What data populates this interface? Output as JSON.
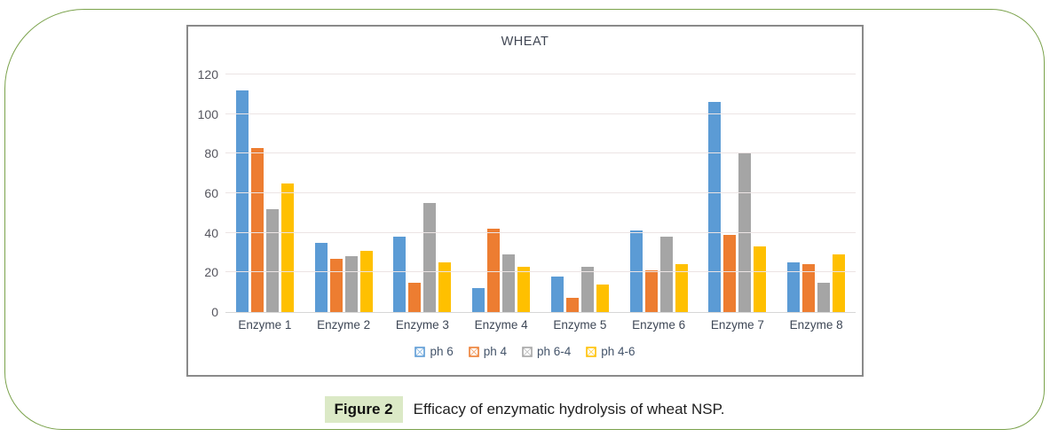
{
  "figure": {
    "caption_label": "Figure 2",
    "caption_text": "Efficacy of enzymatic hydrolysis of wheat NSP."
  },
  "colors": {
    "frame_green": "#7aa24b",
    "badge_green": "#dbe9c6",
    "chart_border_gray": "#8a8a8a"
  },
  "chart_data": {
    "type": "bar",
    "title": "WHEAT",
    "categories": [
      "Enzyme 1",
      "Enzyme 2",
      "Enzyme 3",
      "Enzyme 4",
      "Enzyme 5",
      "Enzyme 6",
      "Enzyme 7",
      "Enzyme 8"
    ],
    "series": [
      {
        "name": "ph 6",
        "color": "#5B9BD5",
        "values": [
          112,
          35,
          38,
          12,
          18,
          41,
          106,
          25
        ]
      },
      {
        "name": "ph 4",
        "color": "#ED7D31",
        "values": [
          83,
          27,
          15,
          42,
          7,
          21,
          39,
          24
        ]
      },
      {
        "name": "ph 6-4",
        "color": "#A5A5A5",
        "values": [
          52,
          28,
          55,
          29,
          23,
          38,
          80,
          15
        ]
      },
      {
        "name": "ph 4-6",
        "color": "#FFC000",
        "values": [
          65,
          31,
          25,
          23,
          14,
          24,
          33,
          29
        ]
      }
    ],
    "ylim": [
      0,
      120
    ],
    "yticks": [
      0,
      20,
      40,
      60,
      80,
      100,
      120
    ],
    "xlabel": "",
    "ylabel": "",
    "grid": true,
    "legend_position": "bottom"
  }
}
